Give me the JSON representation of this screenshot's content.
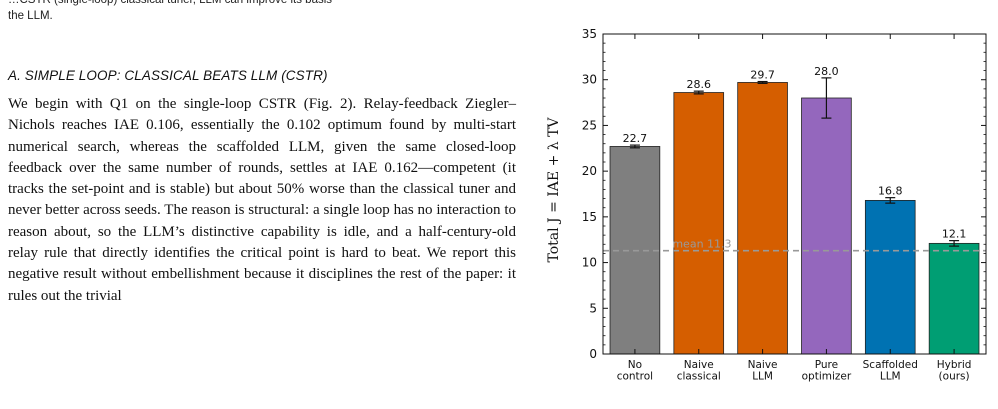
{
  "document": {
    "caption_tail_line1": "…CSTR (single-loop) classical tuner, LLM can improve its basis",
    "caption_tail_line2": "the LLM.",
    "section_heading": "A. SIMPLE LOOP: CLASSICAL BEATS LLM (CSTR)",
    "paragraph_parts": [
      "We begin with Q1 on the single-loop CSTR (Fig. 2). Relay-feedback Ziegler–Nichols reaches IAE ",
      "0.106",
      ", essentially the ",
      "0.102",
      " optimum found by multi-start numerical search, whereas the scaffolded LLM, given the same closed-loop feedback over the same number of rounds, settles at IAE ",
      "0.162",
      "—competent (it tracks the set-point and is stable) but about ",
      "50%",
      " worse than the classical tuner and never better across seeds. The reason is structural: a single loop has no interaction to reason about, so the LLM’s distinctive capability is idle, and a half-century-old relay rule that directly identifies the critical point is hard to beat. We report this negative result without embellishment because it disciplines the rest of the paper: it rules out the trivial"
    ]
  },
  "chart_data": {
    "type": "bar",
    "ylabel": "Total J = IAE + λ TV",
    "ylim": [
      0,
      35
    ],
    "yticks": [
      0,
      5,
      10,
      15,
      20,
      25,
      30,
      35
    ],
    "categories": [
      [
        "No",
        "control"
      ],
      [
        "Naive",
        "classical"
      ],
      [
        "Naive",
        "LLM"
      ],
      [
        "Pure",
        "optimizer"
      ],
      [
        "Scaffolded",
        "LLM"
      ],
      [
        "Hybrid",
        "(ours)"
      ]
    ],
    "values": [
      22.7,
      28.6,
      29.7,
      28.0,
      16.8,
      12.1
    ],
    "value_labels": [
      "22.7",
      "28.6",
      "29.7",
      "28.0",
      "16.8",
      "12.1"
    ],
    "errors": [
      0.15,
      0.15,
      0.1,
      2.2,
      0.3,
      0.3
    ],
    "colors": [
      "#7f7f7f",
      "#d55e00",
      "#d55e00",
      "#9467bd",
      "#0072b2",
      "#009e73"
    ],
    "reference_line": {
      "value": 11.3,
      "label": "mean 11.3",
      "color": "#999999"
    },
    "grid": false,
    "legend": "none"
  }
}
